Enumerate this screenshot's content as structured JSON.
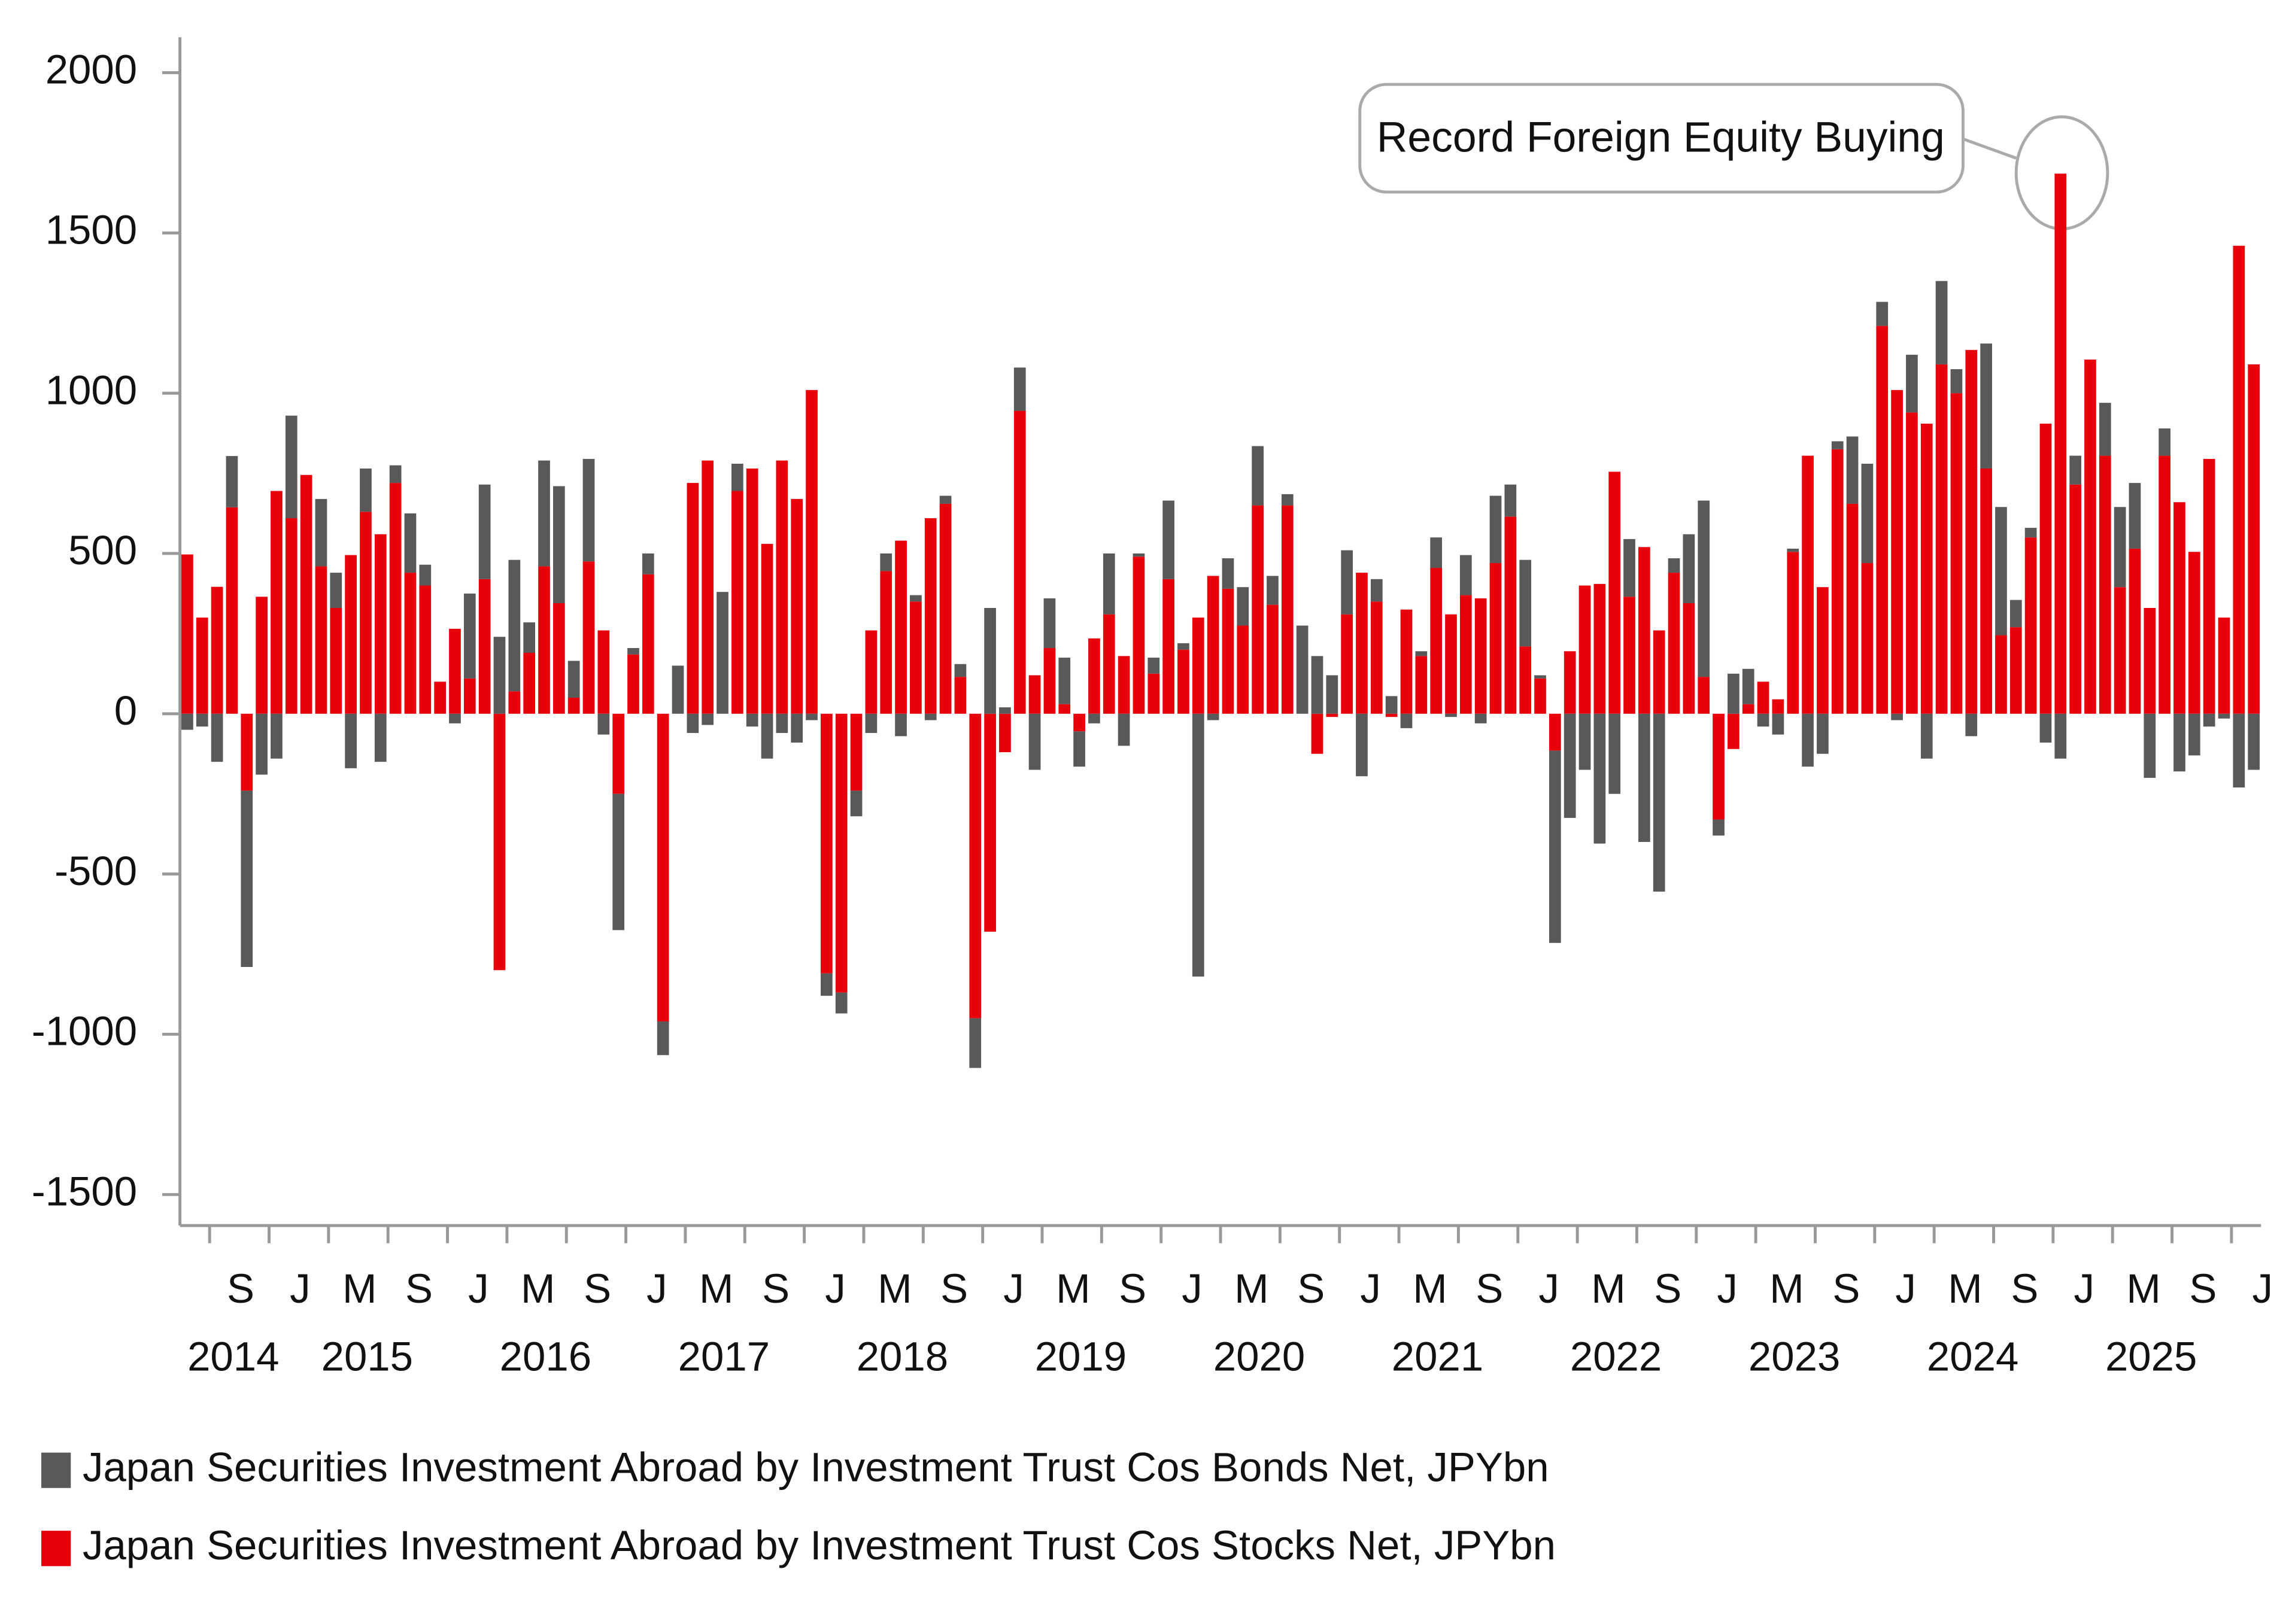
{
  "chart_data": {
    "type": "stacked-bar",
    "annotation": "Record Foreign Equity Buying",
    "categories": [
      null,
      null,
      "S",
      null,
      null,
      null,
      "J",
      null,
      null,
      null,
      "M",
      null,
      null,
      null,
      "S",
      null,
      null,
      null,
      "J",
      null,
      null,
      null,
      "M",
      null,
      null,
      null,
      "S",
      null,
      null,
      null,
      "J",
      null,
      null,
      null,
      "M",
      null,
      null,
      null,
      "S",
      null,
      null,
      null,
      "J",
      null,
      null,
      null,
      "M",
      null,
      null,
      null,
      "S",
      null,
      null,
      null,
      "J",
      null,
      null,
      null,
      "M",
      null,
      null,
      null,
      "S",
      null,
      null,
      null,
      "J",
      null,
      null,
      null,
      "M",
      null,
      null,
      null,
      "S",
      null,
      null,
      null,
      "J",
      null,
      null,
      null,
      "M",
      null,
      null,
      null,
      "S",
      null,
      null,
      null,
      "J",
      null,
      null,
      null,
      "M",
      null,
      null,
      null,
      "S",
      null,
      null,
      null,
      "J",
      null,
      null,
      null,
      "M",
      null,
      null,
      null,
      "S",
      null,
      null,
      null,
      "J",
      null,
      null,
      null,
      "M",
      null,
      null,
      null,
      "S",
      null,
      null,
      null,
      "J",
      null,
      null,
      null,
      "M",
      null,
      null,
      null,
      "S",
      null,
      null,
      null,
      "J",
      null
    ],
    "year_labels": [
      "2014",
      "2015",
      "2016",
      "2017",
      "2018",
      "2019",
      "2020",
      "2021",
      "2022",
      "2023",
      "2024",
      "2025"
    ],
    "series": [
      {
        "name": "Japan Securities Investment Abroad by Investment Trust Cos Bonds Net, JPYbn",
        "color": "#595959",
        "values": [
          -50,
          -40,
          -150,
          160,
          -550,
          -190,
          -140,
          320,
          0,
          210,
          110,
          -170,
          135,
          -150,
          55,
          185,
          65,
          0,
          -30,
          265,
          295,
          240,
          410,
          95,
          330,
          365,
          115,
          320,
          -65,
          -425,
          20,
          65,
          -105,
          150,
          -60,
          -35,
          380,
          85,
          -40,
          -140,
          -60,
          -90,
          -20,
          -70,
          -65,
          -80,
          -60,
          55,
          -70,
          20,
          -20,
          25,
          40,
          -155,
          330,
          20,
          135,
          -175,
          155,
          145,
          -110,
          -30,
          190,
          -100,
          10,
          50,
          245,
          20,
          -820,
          -20,
          95,
          120,
          185,
          90,
          35,
          275,
          180,
          120,
          200,
          -195,
          70,
          55,
          -45,
          15,
          95,
          -10,
          125,
          -30,
          210,
          100,
          270,
          10,
          -600,
          -325,
          -175,
          -405,
          -250,
          180,
          -400,
          -555,
          45,
          215,
          550,
          -50,
          125,
          110,
          -40,
          -65,
          10,
          -165,
          -125,
          25,
          210,
          310,
          75,
          -20,
          180,
          -140,
          260,
          75,
          -70,
          390,
          400,
          85,
          30,
          -90,
          -140,
          90,
          0,
          165,
          250,
          205,
          -200,
          85,
          -180,
          -130,
          -40,
          -15,
          -230,
          -175
        ]
      },
      {
        "name": "Japan Securities Investment Abroad by Investment Trust Cos Stocks Net, JPYbn",
        "color": "#e8000b",
        "values": [
          497,
          300,
          396,
          644,
          -240,
          365,
          695,
          610,
          745,
          460,
          330,
          495,
          630,
          560,
          720,
          440,
          400,
          100,
          265,
          110,
          420,
          -800,
          70,
          190,
          460,
          345,
          50,
          475,
          260,
          -250,
          185,
          435,
          -960,
          0,
          720,
          790,
          0,
          695,
          765,
          530,
          790,
          670,
          1010,
          -810,
          -870,
          -240,
          260,
          445,
          540,
          350,
          610,
          655,
          115,
          -950,
          -680,
          -120,
          945,
          120,
          205,
          30,
          -55,
          235,
          310,
          180,
          490,
          125,
          420,
          200,
          300,
          430,
          390,
          275,
          650,
          340,
          650,
          0,
          -125,
          -10,
          310,
          440,
          350,
          -10,
          325,
          180,
          455,
          310,
          370,
          360,
          470,
          615,
          210,
          110,
          -115,
          195,
          400,
          405,
          755,
          365,
          520,
          260,
          440,
          345,
          115,
          -330,
          -110,
          30,
          100,
          45,
          505,
          805,
          395,
          825,
          655,
          470,
          1210,
          1010,
          940,
          905,
          1090,
          1000,
          1135,
          765,
          245,
          270,
          550,
          905,
          1685,
          715,
          1105,
          805,
          395,
          515,
          330,
          805,
          660,
          505,
          795,
          300,
          1460,
          1090
        ]
      }
    ],
    "ylim": [
      -1600,
      2100
    ],
    "yticks": [
      2000,
      1500,
      1000,
      500,
      0,
      -500,
      -1000,
      -1500
    ]
  }
}
